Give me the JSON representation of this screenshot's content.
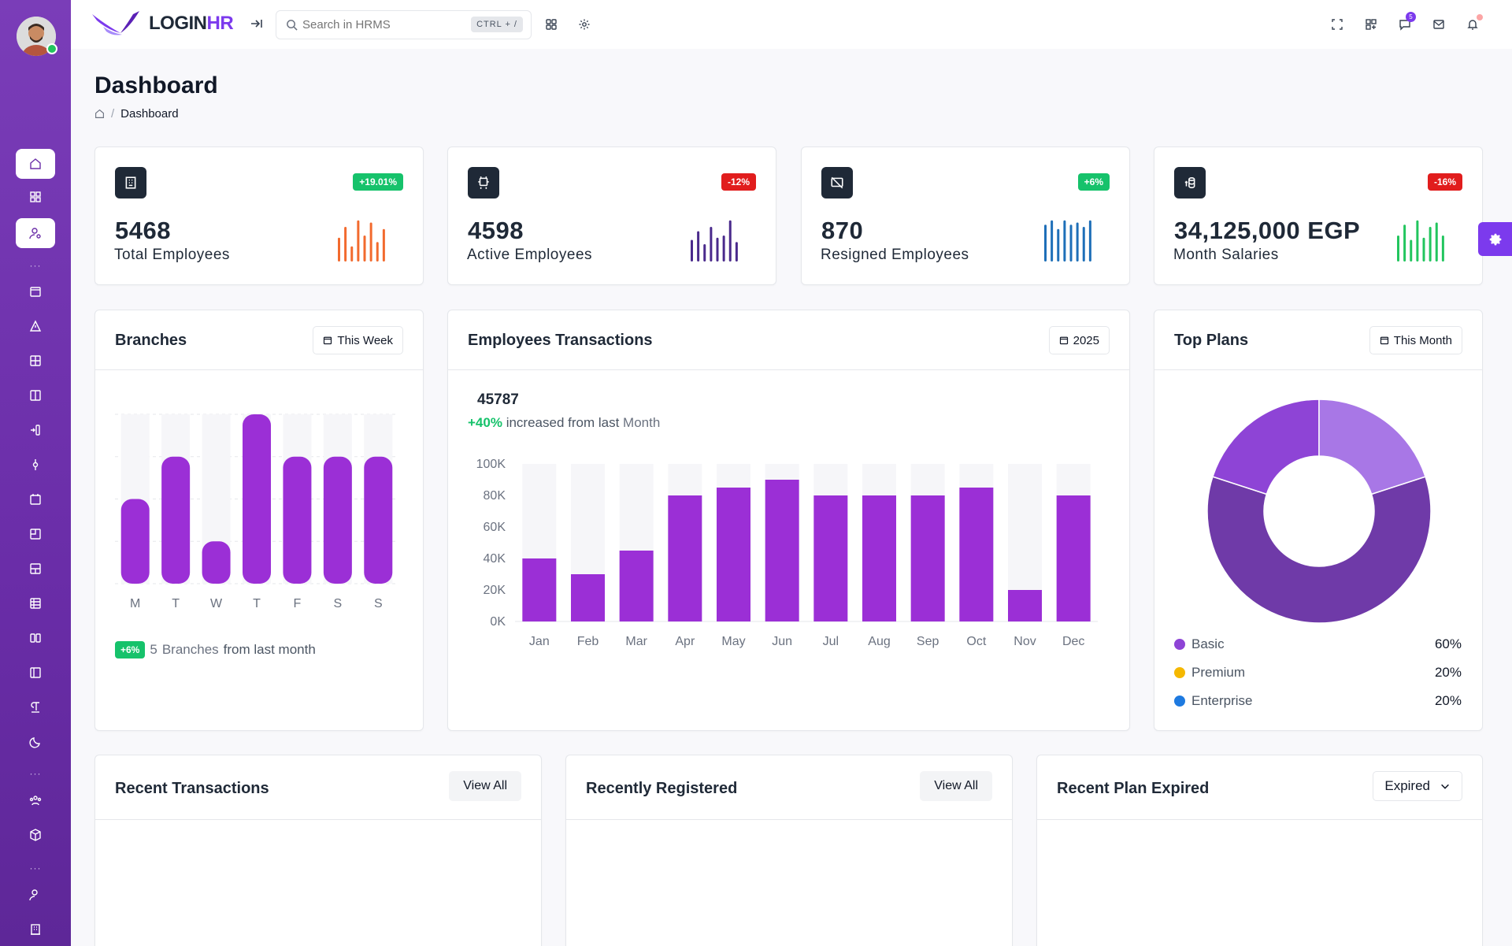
{
  "header": {
    "logo_main": "LOGIN",
    "logo_accent": "HR",
    "search_placeholder": "Search in HRMS",
    "search_shortcut": "CTRL + /",
    "notifications_count": "5"
  },
  "page": {
    "title": "Dashboard",
    "breadcrumb_current": "Dashboard"
  },
  "stats": [
    {
      "value": "5468",
      "label": "Total Employees",
      "change": "+19.01%",
      "trend": "up",
      "spark_color": "#f26a2e",
      "spark": [
        0.55,
        0.8,
        0.35,
        0.95,
        0.6,
        0.9,
        0.45,
        0.75
      ]
    },
    {
      "value": "4598",
      "label": "Active Employees",
      "change": "-12%",
      "trend": "down",
      "spark_color": "#4a2a8c",
      "spark": [
        0.5,
        0.7,
        0.4,
        0.8,
        0.55,
        0.6,
        0.95,
        0.45
      ]
    },
    {
      "value": "870",
      "label": "Resigned Employees",
      "change": "+6%",
      "trend": "up",
      "spark_color": "#1e6fb8",
      "spark": [
        0.85,
        0.95,
        0.75,
        0.95,
        0.85,
        0.9,
        0.8,
        0.95
      ]
    },
    {
      "value": "34,125,000 EGP",
      "label": "Month Salaries",
      "change": "-16%",
      "trend": "down",
      "spark_color": "#22c55e",
      "spark": [
        0.6,
        0.85,
        0.5,
        0.95,
        0.55,
        0.8,
        0.9,
        0.6
      ]
    }
  ],
  "branches": {
    "title": "Branches",
    "filter": "This Week",
    "footer_badge": "+6%",
    "footer_count": "5",
    "footer_word": "Branches",
    "footer_text": "from last month"
  },
  "transactions": {
    "title": "Employees Transactions",
    "filter": "2025",
    "total": "45787",
    "change": "+40%",
    "change_text": "increased from last",
    "change_period": "Month"
  },
  "top_plans": {
    "title": "Top Plans",
    "filter": "This Month",
    "items": [
      {
        "name": "Basic",
        "percent": "60%",
        "color": "#8e44d6"
      },
      {
        "name": "Premium",
        "percent": "20%",
        "color": "#f5b800"
      },
      {
        "name": "Enterprise",
        "percent": "20%",
        "color": "#1e7ae0"
      }
    ]
  },
  "recent": {
    "transactions_title": "Recent Transactions",
    "transactions_btn": "View All",
    "registered_title": "Recently Registered",
    "registered_btn": "View All",
    "expired_title": "Recent Plan Expired",
    "expired_select": "Expired"
  },
  "chart_data": [
    {
      "type": "bar",
      "categories": [
        "M",
        "T",
        "W",
        "T",
        "F",
        "S",
        "S"
      ],
      "values": [
        50,
        75,
        25,
        100,
        75,
        75,
        75
      ],
      "ylim": [
        0,
        100
      ],
      "color": "#9b2fd6",
      "grid": true
    },
    {
      "type": "bar",
      "categories": [
        "Jan",
        "Feb",
        "Mar",
        "Apr",
        "May",
        "Jun",
        "Jul",
        "Aug",
        "Sep",
        "Oct",
        "Nov",
        "Dec"
      ],
      "values": [
        40000,
        30000,
        45000,
        80000,
        85000,
        90000,
        80000,
        80000,
        80000,
        85000,
        20000,
        80000
      ],
      "ylim": [
        0,
        100000
      ],
      "yticks": [
        "0K",
        "20K",
        "40K",
        "60K",
        "80K",
        "100K"
      ],
      "color": "#9b2fd6",
      "grid": false
    },
    {
      "type": "pie",
      "categories": [
        "Basic",
        "Premium",
        "Enterprise"
      ],
      "values": [
        60,
        20,
        20
      ],
      "colors": [
        "#6f3aa8",
        "#8e44d6",
        "#a877e6"
      ],
      "donut": true
    }
  ]
}
